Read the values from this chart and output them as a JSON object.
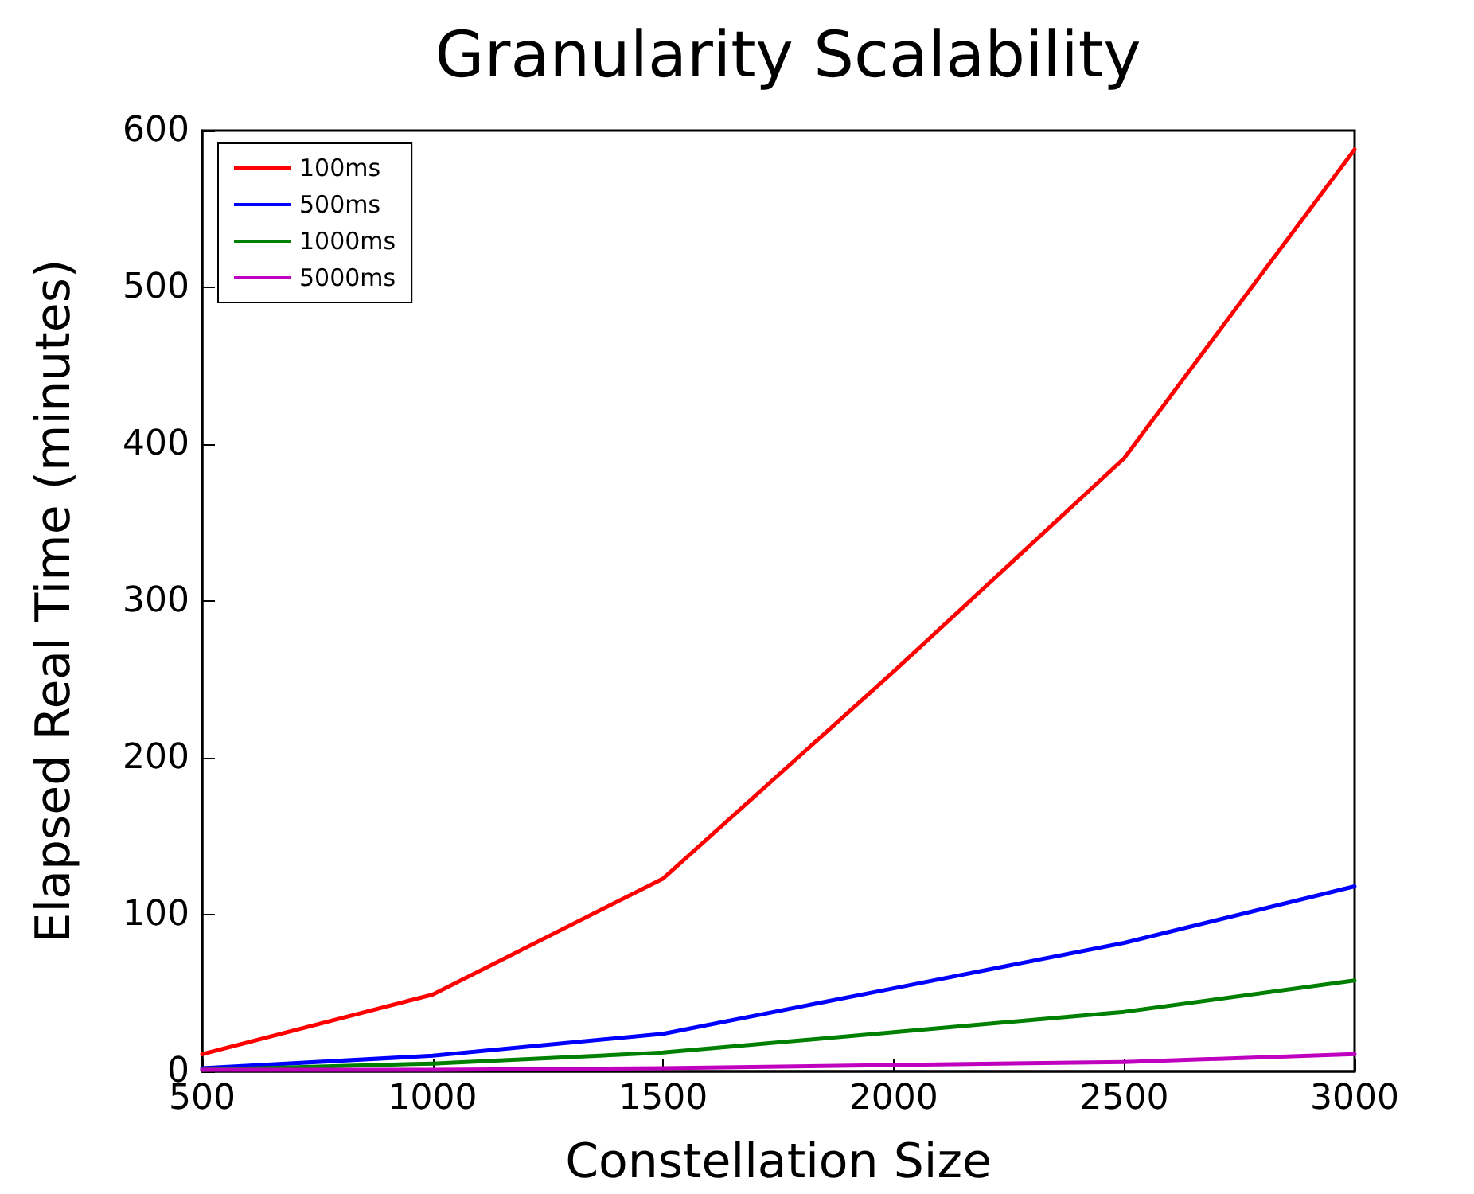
{
  "chart_data": {
    "type": "line",
    "title": "Granularity Scalability",
    "xlabel": "Constellation Size",
    "ylabel": "Elapsed Real Time (minutes)",
    "x": [
      500,
      1000,
      1500,
      2000,
      2500,
      3000
    ],
    "series": [
      {
        "name": "100ms",
        "color": "#ff0000",
        "values": [
          11,
          49,
          123,
          255,
          391,
          588
        ]
      },
      {
        "name": "500ms",
        "color": "#0000ff",
        "values": [
          2,
          10,
          24,
          53,
          82,
          118
        ]
      },
      {
        "name": "1000ms",
        "color": "#008000",
        "values": [
          1,
          5,
          12,
          25,
          38,
          58
        ]
      },
      {
        "name": "5000ms",
        "color": "#bf00bf",
        "values": [
          1,
          1,
          2,
          4,
          6,
          11
        ]
      }
    ],
    "xlim": [
      500,
      3000
    ],
    "xticks": [
      500,
      1000,
      1500,
      2000,
      2500,
      3000
    ],
    "ylim": [
      0,
      600
    ],
    "yticks": [
      0,
      100,
      200,
      300,
      400,
      500,
      600
    ],
    "grid": false,
    "legend": "top left",
    "marker": "none",
    "line_style": "solid"
  }
}
